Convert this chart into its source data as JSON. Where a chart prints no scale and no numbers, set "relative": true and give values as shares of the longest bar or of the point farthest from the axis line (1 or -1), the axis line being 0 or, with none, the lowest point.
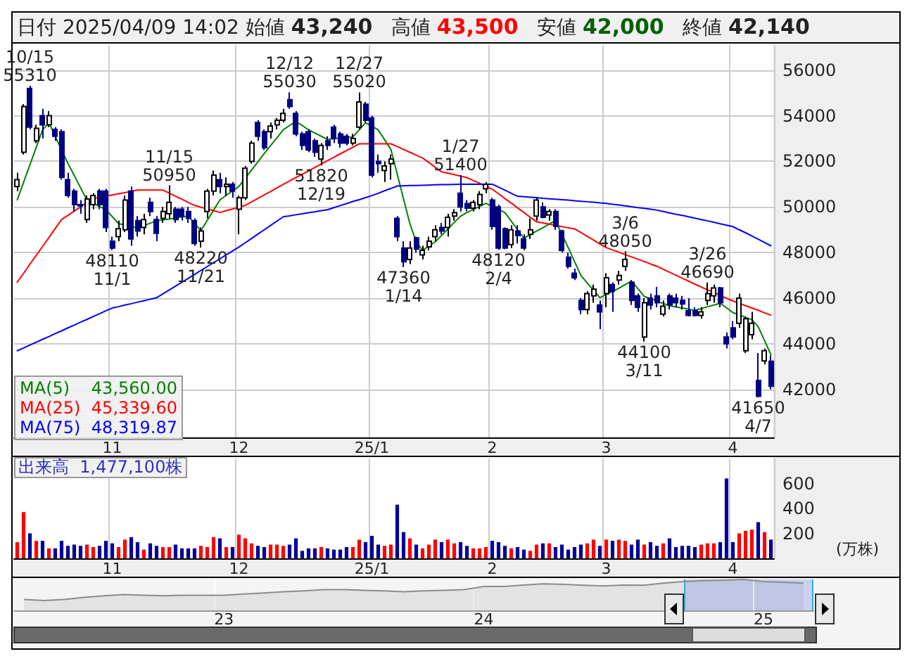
{
  "chart_data": [
    {
      "type": "candlestick",
      "title": "日付 2025/04/09 14:02 始値 43,240 高値 43,500 安値 42,000 終値 42,140",
      "categories": [
        null,
        null,
        null,
        null,
        null,
        null,
        null,
        null,
        null,
        null,
        null,
        null,
        null,
        null,
        null,
        "11",
        null,
        null,
        null,
        null,
        null,
        null,
        null,
        null,
        null,
        null,
        null,
        null,
        null,
        null,
        null,
        null,
        null,
        null,
        null,
        "12",
        null,
        null,
        null,
        null,
        null,
        null,
        null,
        null,
        null,
        null,
        null,
        null,
        null,
        null,
        null,
        null,
        null,
        null,
        null,
        null,
        "25/1",
        null,
        null,
        null,
        null,
        null,
        null,
        null,
        null,
        null,
        null,
        null,
        null,
        null,
        null,
        null,
        null,
        null,
        null,
        "2",
        null,
        null,
        null,
        null,
        null,
        null,
        null,
        null,
        null,
        null,
        null,
        null,
        null,
        null,
        null,
        null,
        null,
        "3",
        null,
        null,
        null,
        null,
        null,
        null,
        null,
        null,
        null,
        null,
        null,
        null,
        null,
        null,
        null,
        null,
        null,
        null,
        null,
        "4",
        null,
        null,
        null,
        null,
        null,
        null
      ],
      "ohlc": [
        [
          50900,
          51500,
          50700,
          51200
        ],
        [
          52400,
          54500,
          52300,
          54400
        ],
        [
          55200,
          55310,
          53400,
          53500
        ],
        [
          52900,
          53600,
          52800,
          53450
        ],
        [
          54000,
          54300,
          53000,
          53600
        ],
        [
          53600,
          54200,
          53500,
          54000
        ],
        [
          53400,
          53500,
          52900,
          53100
        ],
        [
          53300,
          53400,
          51200,
          51300
        ],
        [
          51200,
          51500,
          50400,
          50500
        ],
        [
          50700,
          50800,
          49800,
          50100
        ],
        [
          50100,
          50300,
          49700,
          50050
        ],
        [
          49450,
          50500,
          49300,
          50350
        ],
        [
          50100,
          50600,
          49900,
          50500
        ],
        [
          50700,
          50800,
          49900,
          50100
        ],
        [
          50700,
          50800,
          48900,
          49100
        ],
        [
          48500,
          48700,
          48110,
          48200
        ],
        [
          48700,
          49400,
          48500,
          49050
        ],
        [
          49000,
          50500,
          48900,
          50300
        ],
        [
          50700,
          50900,
          48300,
          48600
        ],
        [
          49400,
          49600,
          48700,
          48950
        ],
        [
          49100,
          49700,
          48800,
          49450
        ],
        [
          50200,
          50400,
          49600,
          49800
        ],
        [
          49450,
          49600,
          48500,
          48850
        ],
        [
          49500,
          50000,
          49300,
          49800
        ],
        [
          49700,
          50950,
          49500,
          50200
        ],
        [
          49900,
          50000,
          49300,
          49450
        ],
        [
          49900,
          50000,
          49400,
          49600
        ],
        [
          49800,
          50000,
          49300,
          49500
        ],
        [
          49400,
          49500,
          48300,
          48400
        ],
        [
          48500,
          49100,
          48220,
          48950
        ],
        [
          49800,
          50800,
          49500,
          50700
        ],
        [
          50700,
          51600,
          50500,
          51400
        ],
        [
          51200,
          51500,
          50600,
          50900
        ],
        [
          50900,
          51300,
          50500,
          51000
        ],
        [
          51000,
          51100,
          50400,
          50700
        ],
        [
          49900,
          50500,
          48800,
          50400
        ],
        [
          50400,
          51800,
          50300,
          51700
        ],
        [
          52000,
          52900,
          51900,
          52800
        ],
        [
          53700,
          53800,
          52900,
          53100
        ],
        [
          53300,
          53400,
          52500,
          52600
        ],
        [
          53300,
          53700,
          53000,
          53550
        ],
        [
          53600,
          53900,
          53400,
          53800
        ],
        [
          53800,
          54300,
          53700,
          54100
        ],
        [
          54700,
          55030,
          54300,
          54400
        ],
        [
          54100,
          54200,
          53100,
          53200
        ],
        [
          53200,
          53300,
          52500,
          52700
        ],
        [
          53300,
          53400,
          52400,
          52500
        ],
        [
          52900,
          53000,
          52200,
          52400
        ],
        [
          52100,
          52800,
          51820,
          52700
        ],
        [
          52900,
          53100,
          52500,
          52700
        ],
        [
          53500,
          53600,
          52800,
          53000
        ],
        [
          53200,
          53300,
          52600,
          52800
        ],
        [
          53100,
          53200,
          52700,
          52800
        ],
        [
          52800,
          53200,
          52700,
          53000
        ],
        [
          53500,
          55020,
          53400,
          54600
        ],
        [
          54500,
          54600,
          53700,
          53800
        ],
        [
          53900,
          54000,
          51300,
          51400
        ],
        [
          52000,
          52300,
          51500,
          51900
        ],
        [
          51600,
          52000,
          51100,
          51800
        ],
        [
          51900,
          52300,
          51200,
          52100
        ],
        [
          49500,
          49600,
          48500,
          48700
        ],
        [
          48200,
          48500,
          47360,
          47600
        ],
        [
          47700,
          48500,
          47500,
          48200
        ],
        [
          48650,
          48700,
          48000,
          48150
        ],
        [
          47900,
          48300,
          47700,
          48100
        ],
        [
          48250,
          48700,
          48100,
          48500
        ],
        [
          48700,
          49200,
          48500,
          49000
        ],
        [
          49100,
          49300,
          48800,
          48950
        ],
        [
          49100,
          49700,
          48700,
          49550
        ],
        [
          49600,
          49900,
          49400,
          49750
        ],
        [
          50600,
          51400,
          49800,
          50000
        ],
        [
          50150,
          50300,
          49800,
          49950
        ],
        [
          49950,
          50300,
          49800,
          50200
        ],
        [
          50100,
          50700,
          49900,
          50550
        ],
        [
          50800,
          51100,
          50600,
          51000
        ],
        [
          50300,
          50400,
          49000,
          49150
        ],
        [
          50000,
          50100,
          48120,
          48200
        ],
        [
          49050,
          49100,
          48150,
          48200
        ],
        [
          48350,
          49200,
          48200,
          49000
        ],
        [
          48950,
          49200,
          48400,
          48750
        ],
        [
          48600,
          48800,
          48100,
          48200
        ],
        [
          48800,
          49500,
          48600,
          49000
        ],
        [
          49600,
          50400,
          49400,
          50300
        ],
        [
          50000,
          50200,
          49500,
          49550
        ],
        [
          49650,
          49900,
          49400,
          49800
        ],
        [
          49800,
          49900,
          49000,
          49150
        ],
        [
          48950,
          49000,
          48000,
          48100
        ],
        [
          47800,
          48000,
          47300,
          47400
        ],
        [
          47100,
          47300,
          46800,
          46900
        ],
        [
          45900,
          46000,
          45300,
          45500
        ],
        [
          45500,
          46300,
          45300,
          46200
        ],
        [
          46100,
          46600,
          45800,
          46400
        ],
        [
          45700,
          45900,
          44650,
          45400
        ],
        [
          46200,
          47100,
          45600,
          46900
        ],
        [
          46600,
          46700,
          45400,
          46300
        ],
        [
          46800,
          47200,
          46600,
          47000
        ],
        [
          47400,
          48050,
          47200,
          47700
        ],
        [
          46700,
          46800,
          45700,
          45900
        ],
        [
          46100,
          46200,
          45400,
          45600
        ],
        [
          44300,
          46000,
          44100,
          45800
        ],
        [
          46000,
          46200,
          45500,
          45700
        ],
        [
          46100,
          46500,
          45600,
          45800
        ],
        [
          45300,
          45900,
          45200,
          45650
        ],
        [
          46100,
          46200,
          45500,
          45700
        ],
        [
          46000,
          46200,
          45600,
          45800
        ],
        [
          45900,
          46100,
          45500,
          45750
        ],
        [
          45450,
          46000,
          45200,
          45250
        ],
        [
          45450,
          45600,
          45200,
          45250
        ],
        [
          45250,
          45600,
          45100,
          45400
        ],
        [
          45900,
          46690,
          45700,
          46200
        ],
        [
          46100,
          46600,
          45800,
          46450
        ],
        [
          46450,
          46500,
          45600,
          45800
        ],
        [
          44300,
          44500,
          43800,
          44000
        ],
        [
          44700,
          45000,
          44200,
          44300
        ],
        [
          44900,
          46200,
          44700,
          46000
        ],
        [
          43700,
          45200,
          43600,
          45100
        ],
        [
          44400,
          45400,
          44200,
          44900
        ],
        [
          42400,
          43600,
          41650,
          41700
        ],
        [
          43250,
          43800,
          43100,
          43700
        ],
        [
          43240,
          43500,
          42000,
          42140
        ]
      ],
      "colors": [
        "#ffffff",
        "#ffffff",
        "#000080",
        "#ffffff",
        "#000080",
        "#ffffff",
        "#000080",
        "#000080",
        "#000080",
        "#000080",
        "#000080",
        "#ffffff",
        "#ffffff",
        "#000080",
        "#000080",
        "#000080",
        "#ffffff",
        "#ffffff",
        "#000080",
        "#000080",
        "#ffffff",
        "#000080",
        "#000080",
        "#ffffff",
        "#ffffff",
        "#000080",
        "#000080",
        "#000080",
        "#000080",
        "#ffffff",
        "#ffffff",
        "#ffffff",
        "#000080",
        "#ffffff",
        "#000080",
        "#ffffff",
        "#ffffff",
        "#ffffff",
        "#000080",
        "#000080",
        "#ffffff",
        "#ffffff",
        "#ffffff",
        "#000080",
        "#000080",
        "#000080",
        "#000080",
        "#000080",
        "#ffffff",
        "#000080",
        "#000080",
        "#000080",
        "#000080",
        "#ffffff",
        "#ffffff",
        "#000080",
        "#000080",
        "#000080",
        "#ffffff",
        "#ffffff",
        "#000080",
        "#000080",
        "#ffffff",
        "#000080",
        "#ffffff",
        "#ffffff",
        "#ffffff",
        "#000080",
        "#ffffff",
        "#ffffff",
        "#000080",
        "#000080",
        "#ffffff",
        "#ffffff",
        "#ffffff",
        "#000080",
        "#000080",
        "#000080",
        "#ffffff",
        "#000080",
        "#000080",
        "#ffffff",
        "#ffffff",
        "#000080",
        "#ffffff",
        "#000080",
        "#000080",
        "#000080",
        "#000080",
        "#000080",
        "#ffffff",
        "#ffffff",
        "#000080",
        "#ffffff",
        "#000080",
        "#ffffff",
        "#ffffff",
        "#000080",
        "#000080",
        "#ffffff",
        "#000080",
        "#000080",
        "#ffffff",
        "#000080",
        "#000080",
        "#000080",
        "#000080",
        "#000080",
        "#ffffff",
        "#ffffff",
        "#ffffff",
        "#000080",
        "#000080",
        "#000080",
        "#ffffff",
        "#ffffff",
        "#ffffff",
        "#000080",
        "#ffffff",
        "#000080"
      ],
      "series": [
        {
          "type": "line",
          "name": "MA(5)",
          "color": "#008000",
          "values": [
            50310,
            51080,
            51850,
            52610,
            53380,
            53690,
            53100,
            52500,
            51910,
            51380,
            50840,
            50310,
            50170,
            50020,
            49880,
            49580,
            49270,
            49210,
            49140,
            49080,
            49180,
            49290,
            49390,
            49430,
            49470,
            49520,
            49560,
            49600,
            49280,
            48960,
            49410,
            49860,
            50310,
            50510,
            50700,
            50900,
            51260,
            51620,
            51980,
            52340,
            52690,
            53030,
            53380,
            53570,
            53750,
            53570,
            53380,
            53240,
            53100,
            52960,
            52990,
            53020,
            53040,
            53070,
            53380,
            53690,
            53540,
            53380,
            52950,
            52520,
            51440,
            50350,
            49270,
            48470,
            48100,
            48290,
            48470,
            48750,
            49040,
            49320,
            49600,
            49750,
            49890,
            50020,
            50160,
            50020,
            49890,
            49750,
            49380,
            49000,
            48630,
            48790,
            48940,
            49090,
            49250,
            49400,
            48810,
            48220,
            47610,
            47000,
            46670,
            46350,
            46020,
            46160,
            46290,
            46440,
            46600,
            46750,
            46420,
            46080,
            45980,
            45880,
            45770,
            45670,
            45620,
            45570,
            45520,
            45470,
            45550,
            45630,
            45700,
            45780,
            45580,
            45370,
            45270,
            45160,
            45060,
            44750,
            44140,
            43530
          ]
        },
        {
          "type": "line",
          "name": "MA(25)",
          "color": "#ff0000",
          "values": [
            46700,
            47090,
            47490,
            47880,
            48270,
            48660,
            49060,
            49450,
            49630,
            49820,
            50000,
            50190,
            50370,
            50420,
            50480,
            50530,
            50580,
            50630,
            50690,
            50740,
            50740,
            50740,
            50740,
            50740,
            50610,
            50470,
            50340,
            50200,
            50070,
            49990,
            49920,
            49840,
            49760,
            49840,
            49910,
            49990,
            50070,
            50220,
            50380,
            50530,
            50680,
            50840,
            50990,
            51140,
            51290,
            51430,
            51580,
            51730,
            51880,
            52030,
            52180,
            52330,
            52470,
            52620,
            52770,
            52770,
            52770,
            52770,
            52770,
            52770,
            52650,
            52520,
            52400,
            52270,
            52150,
            51950,
            51740,
            51540,
            51480,
            51420,
            51350,
            51290,
            51160,
            51040,
            50910,
            50780,
            50580,
            50370,
            50170,
            49960,
            49760,
            49550,
            49350,
            49300,
            49250,
            49190,
            49140,
            49090,
            49040,
            48880,
            48710,
            48550,
            48380,
            48220,
            48120,
            48020,
            47910,
            47810,
            47710,
            47610,
            47500,
            47400,
            47270,
            47140,
            47010,
            46880,
            46750,
            46620,
            46490,
            46370,
            46250,
            46120,
            46000,
            45880,
            45780,
            45670,
            45570,
            45470,
            45360,
            45260
          ]
        },
        {
          "type": "line",
          "name": "MA(75)",
          "color": "#0000ff",
          "values": [
            43700,
            43820,
            43950,
            44070,
            44200,
            44320,
            44450,
            44570,
            44700,
            44820,
            44950,
            45070,
            45200,
            45320,
            45450,
            45570,
            45630,
            45700,
            45760,
            45830,
            45890,
            45960,
            46020,
            46190,
            46360,
            46530,
            46700,
            46870,
            47040,
            47220,
            47390,
            47560,
            47730,
            47900,
            48070,
            48240,
            48430,
            48620,
            48810,
            49000,
            49190,
            49380,
            49570,
            49610,
            49660,
            49700,
            49750,
            49790,
            49840,
            49880,
            49970,
            50060,
            50150,
            50240,
            50320,
            50410,
            50500,
            50600,
            50710,
            50810,
            50920,
            50930,
            50940,
            50940,
            50950,
            50960,
            50970,
            50980,
            50980,
            50990,
            51000,
            51000,
            51000,
            51000,
            51000,
            51000,
            50870,
            50740,
            50600,
            50470,
            50450,
            50430,
            50410,
            50380,
            50360,
            50340,
            50320,
            50300,
            50270,
            50250,
            50230,
            50210,
            50180,
            50160,
            50120,
            50090,
            50050,
            50010,
            49970,
            49940,
            49900,
            49860,
            49800,
            49740,
            49680,
            49630,
            49570,
            49510,
            49450,
            49390,
            49330,
            49260,
            49200,
            49140,
            49000,
            48870,
            48730,
            48590,
            48440,
            48300
          ]
        }
      ],
      "annotations": [
        {
          "text": "10/15\n55310",
          "y": 55310
        },
        {
          "text": "11/15\n50950",
          "y": 50950
        },
        {
          "text": "12/12\n55030",
          "y": 55030
        },
        {
          "text": "12/27\n55020",
          "y": 55020
        },
        {
          "text": "1/27\n51400",
          "y": 51400
        },
        {
          "text": "3/6\n48050",
          "y": 48050
        },
        {
          "text": "3/26\n46690",
          "y": 46690
        },
        {
          "text": "48110\n11/1",
          "y": 48110
        },
        {
          "text": "48220\n11/21",
          "y": 48220
        },
        {
          "text": "51820\n12/19",
          "y": 51820
        },
        {
          "text": "47360\n1/14",
          "y": 47360
        },
        {
          "text": "48120\n2/4",
          "y": 48120
        },
        {
          "text": "44100\n3/11",
          "y": 44100
        },
        {
          "text": "41650\n4/7",
          "y": 41650
        },
        "43,560.00",
        "45,339.60",
        "48,319.87"
      ],
      "ylim": [
        39900,
        57100
      ],
      "yticks": [
        42000,
        44000,
        46000,
        48000,
        50000,
        52000,
        54000,
        56000
      ],
      "grid": true,
      "legend": "bottom left",
      "marker": "none",
      "line_style": "solid"
    },
    {
      "type": "bar",
      "title": "出来高 1,477,100株",
      "ylabel": "(万株)",
      "categories": [
        null,
        null,
        null,
        null,
        null,
        null,
        null,
        null,
        null,
        null,
        null,
        null,
        null,
        null,
        null,
        "11",
        null,
        null,
        null,
        null,
        null,
        null,
        null,
        null,
        null,
        null,
        null,
        null,
        null,
        null,
        null,
        null,
        null,
        null,
        null,
        "12",
        null,
        null,
        null,
        null,
        null,
        null,
        null,
        null,
        null,
        null,
        null,
        null,
        null,
        null,
        null,
        null,
        null,
        null,
        null,
        null,
        "25/1",
        null,
        null,
        null,
        null,
        null,
        null,
        null,
        null,
        null,
        null,
        null,
        null,
        null,
        null,
        null,
        null,
        null,
        null,
        "2",
        null,
        null,
        null,
        null,
        null,
        null,
        null,
        null,
        null,
        null,
        null,
        null,
        null,
        null,
        null,
        null,
        null,
        "3",
        null,
        null,
        null,
        null,
        null,
        null,
        null,
        null,
        null,
        null,
        null,
        null,
        null,
        null,
        null,
        null,
        null,
        null,
        null,
        "4",
        null,
        null,
        null,
        null,
        null,
        null
      ],
      "values": [
        130,
        370,
        200,
        140,
        140,
        80,
        80,
        140,
        100,
        110,
        100,
        110,
        90,
        100,
        140,
        120,
        90,
        150,
        170,
        130,
        70,
        120,
        100,
        90,
        90,
        110,
        80,
        80,
        80,
        100,
        90,
        170,
        160,
        90,
        90,
        190,
        160,
        120,
        100,
        90,
        110,
        110,
        100,
        110,
        160,
        60,
        80,
        80,
        90,
        80,
        70,
        70,
        90,
        90,
        150,
        130,
        180,
        110,
        100,
        110,
        430,
        210,
        160,
        110,
        80,
        110,
        150,
        130,
        150,
        120,
        130,
        100,
        80,
        80,
        90,
        140,
        130,
        100,
        80,
        90,
        70,
        60,
        110,
        120,
        120,
        90,
        110,
        70,
        90,
        110,
        120,
        150,
        100,
        150,
        140,
        150,
        140,
        110,
        150,
        110,
        130,
        100,
        120,
        160,
        90,
        100,
        100,
        90,
        110,
        120,
        120,
        130,
        640,
        130,
        200,
        220,
        230,
        290,
        210,
        150
      ],
      "colors": [
        "#ff0000",
        "#ff0000",
        "#000099",
        "#ff0000",
        "#000099",
        "#ff0000",
        "#000099",
        "#000099",
        "#000099",
        "#000099",
        "#000099",
        "#ff0000",
        "#ff0000",
        "#000099",
        "#000099",
        "#000099",
        "#ff0000",
        "#ff0000",
        "#000099",
        "#000099",
        "#ff0000",
        "#000099",
        "#000099",
        "#ff0000",
        "#ff0000",
        "#000099",
        "#000099",
        "#000099",
        "#000099",
        "#ff0000",
        "#ff0000",
        "#ff0000",
        "#000099",
        "#ff0000",
        "#000099",
        "#ff0000",
        "#ff0000",
        "#ff0000",
        "#000099",
        "#000099",
        "#ff0000",
        "#ff0000",
        "#ff0000",
        "#000099",
        "#000099",
        "#000099",
        "#000099",
        "#000099",
        "#ff0000",
        "#000099",
        "#000099",
        "#000099",
        "#000099",
        "#ff0000",
        "#ff0000",
        "#000099",
        "#000099",
        "#000099",
        "#ff0000",
        "#ff0000",
        "#000099",
        "#000099",
        "#ff0000",
        "#000099",
        "#ff0000",
        "#ff0000",
        "#ff0000",
        "#000099",
        "#ff0000",
        "#ff0000",
        "#000099",
        "#000099",
        "#ff0000",
        "#ff0000",
        "#ff0000",
        "#000099",
        "#000099",
        "#000099",
        "#ff0000",
        "#000099",
        "#000099",
        "#ff0000",
        "#ff0000",
        "#000099",
        "#ff0000",
        "#000099",
        "#000099",
        "#000099",
        "#000099",
        "#000099",
        "#ff0000",
        "#ff0000",
        "#000099",
        "#ff0000",
        "#000099",
        "#ff0000",
        "#ff0000",
        "#000099",
        "#000099",
        "#ff0000",
        "#000099",
        "#000099",
        "#ff0000",
        "#000099",
        "#000099",
        "#000099",
        "#000099",
        "#000099",
        "#ff0000",
        "#ff0000",
        "#ff0000",
        "#000099",
        "#000099",
        "#000099",
        "#ff0000",
        "#ff0000",
        "#ff0000",
        "#000099",
        "#ff0000",
        "#000099"
      ],
      "ylim": [
        0,
        800
      ],
      "yticks": [
        200,
        400,
        600
      ],
      "grid": "x"
    },
    {
      "type": "area",
      "relative": true,
      "color": "#8c8c8c",
      "categories": [
        null,
        null,
        null,
        null,
        null,
        null,
        null,
        null,
        null,
        null,
        "23",
        null,
        null,
        null,
        null,
        null,
        null,
        null,
        null,
        null,
        null,
        null,
        null,
        "24",
        null,
        null,
        null,
        null,
        null,
        null,
        null,
        null,
        null,
        null,
        null,
        null,
        null,
        "25",
        null,
        null
      ],
      "values": [
        0.35,
        0.32,
        0.35,
        0.42,
        0.47,
        0.51,
        0.49,
        0.47,
        0.49,
        0.49,
        0.49,
        0.53,
        0.56,
        0.6,
        0.63,
        0.67,
        0.67,
        0.65,
        0.63,
        0.6,
        0.63,
        0.65,
        0.67,
        0.77,
        0.77,
        0.82,
        0.86,
        0.84,
        0.81,
        0.79,
        0.82,
        0.81,
        0.88,
        0.93,
        0.96,
        0.98,
        1,
        0.93,
        0.91,
        0.88
      ],
      "grid": "x",
      "tick_labels": "x"
    }
  ]
}
